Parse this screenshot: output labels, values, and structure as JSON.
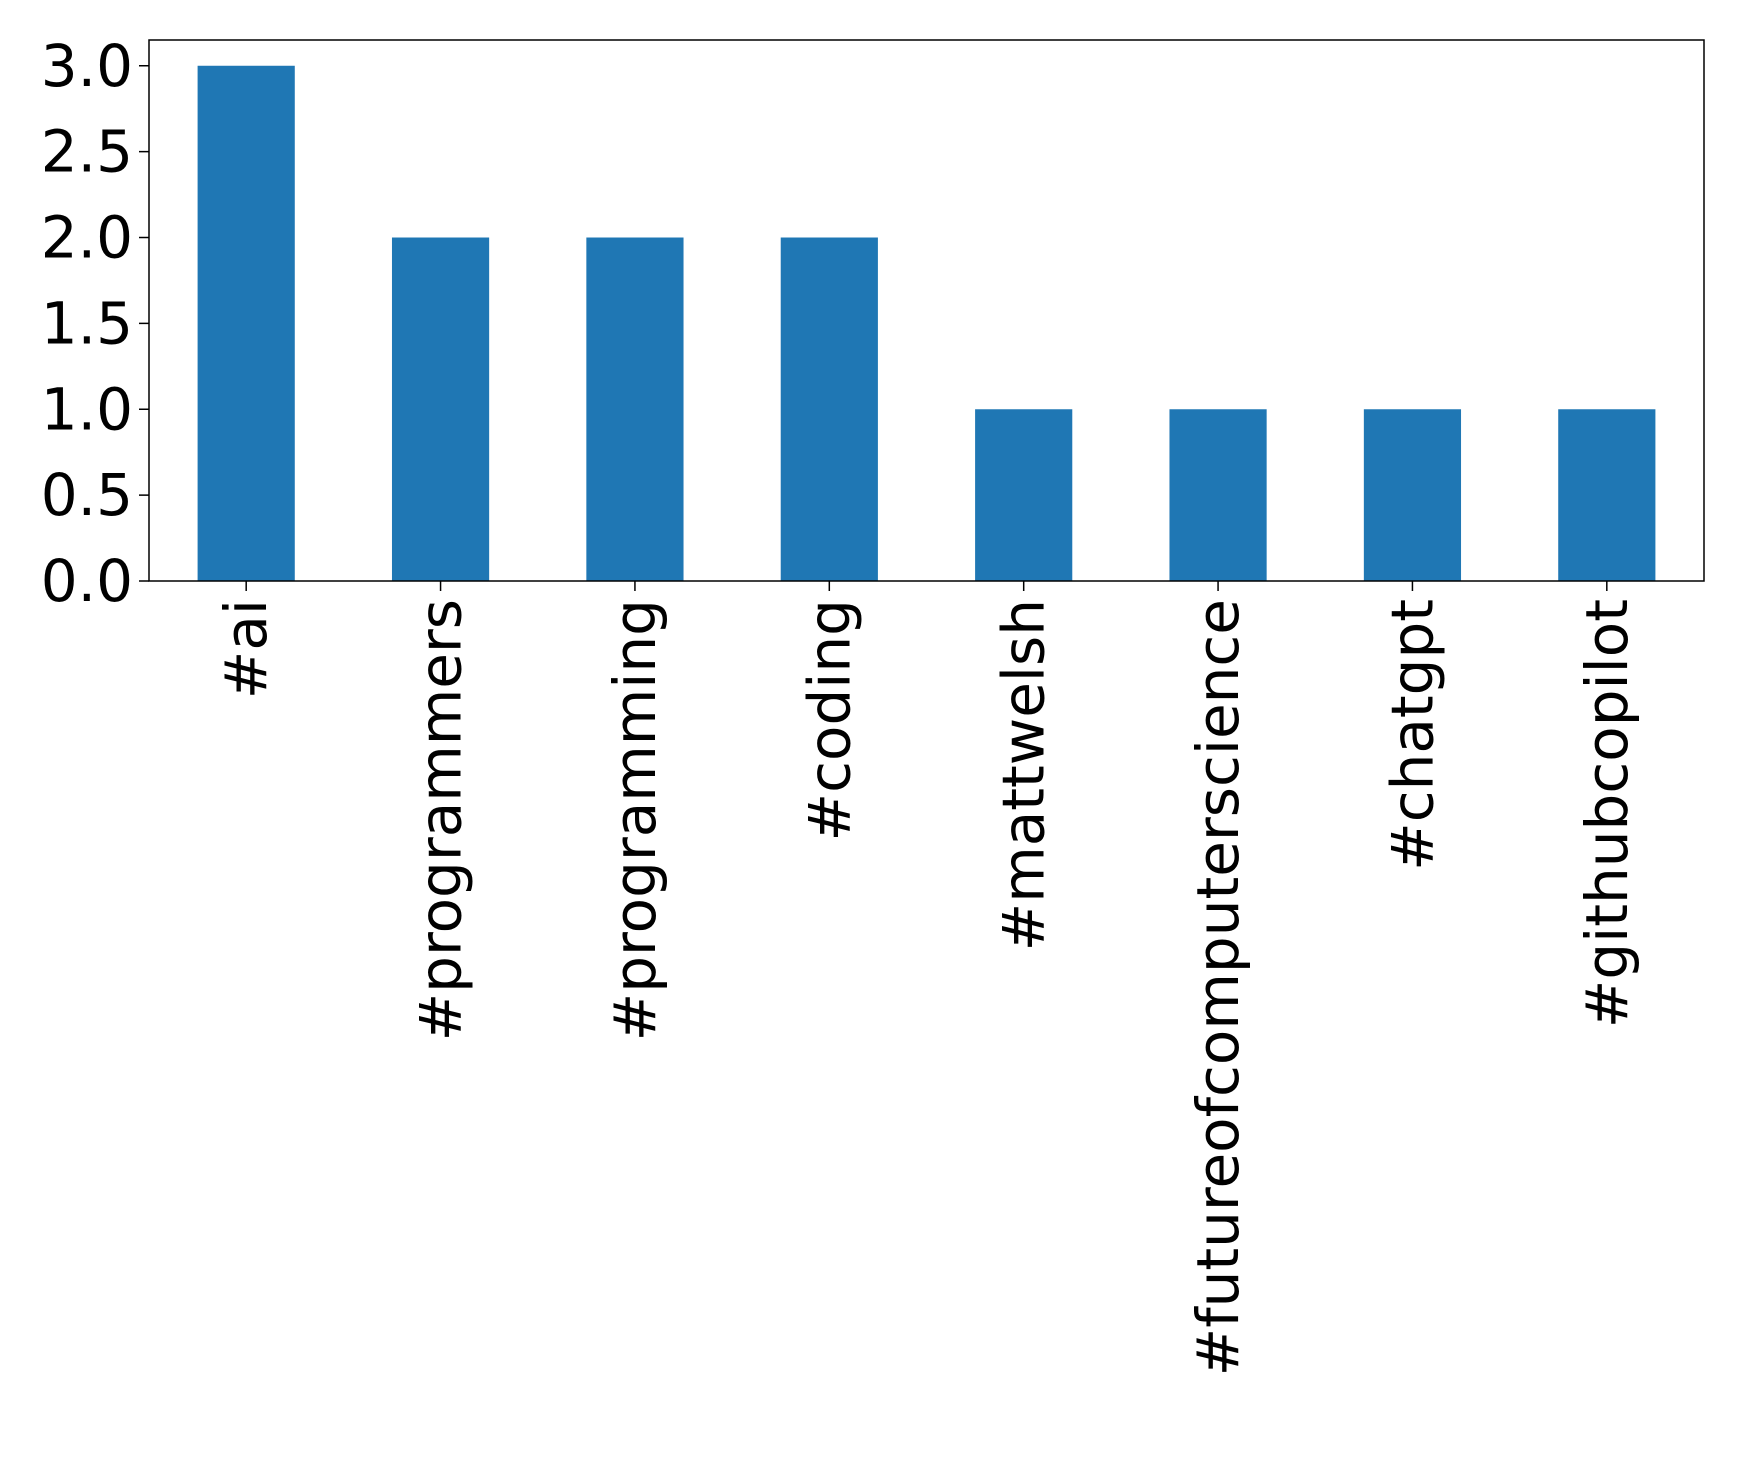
{
  "chart_data": {
    "type": "bar",
    "title": "",
    "xlabel": "",
    "ylabel": "",
    "categories": [
      "#ai",
      "#programmers",
      "#programming",
      "#coding",
      "#mattwelsh",
      "#futureofcomputerscience",
      "#chatgpt",
      "#githubcopilot"
    ],
    "values": [
      3,
      2,
      2,
      2,
      1,
      1,
      1,
      1
    ],
    "ylim": [
      0,
      3.15
    ],
    "yticks": [
      "0.0",
      "0.5",
      "1.0",
      "1.5",
      "2.0",
      "2.5",
      "3.0"
    ],
    "grid": false,
    "legend": "none",
    "bar_color": "#1f77b4"
  }
}
